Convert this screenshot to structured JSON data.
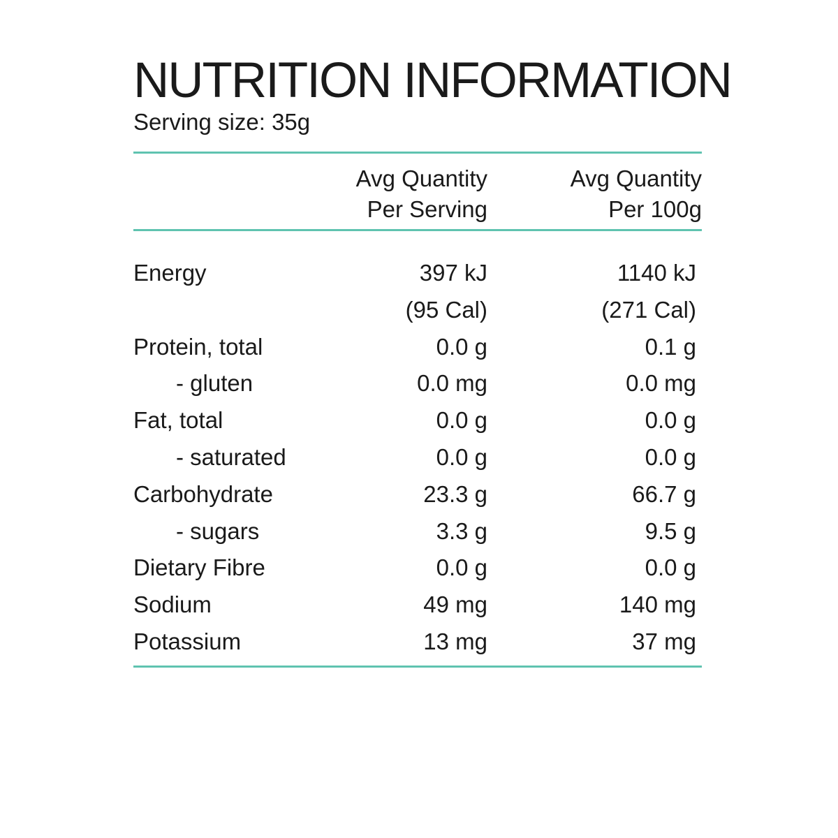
{
  "title": "NUTRITION INFORMATION",
  "serving_size": "Serving size: 35g",
  "columns": {
    "per_serving": [
      "Avg Quantity",
      "Per Serving"
    ],
    "per_100g": [
      "Avg Quantity",
      "Per 100g"
    ]
  },
  "rows": [
    {
      "label": "Energy",
      "per_serving": "397 kJ",
      "per_100g": "1140 kJ"
    },
    {
      "label": "",
      "per_serving": "(95 Cal)",
      "per_100g": "(271 Cal)"
    },
    {
      "label": "Protein, total",
      "per_serving": "0.0 g",
      "per_100g": "0.1 g"
    },
    {
      "label": "- gluten",
      "per_serving": "0.0 mg",
      "per_100g": "0.0 mg"
    },
    {
      "label": "Fat, total",
      "per_serving": "0.0 g",
      "per_100g": "0.0 g"
    },
    {
      "label": "- saturated",
      "per_serving": "0.0 g",
      "per_100g": "0.0 g"
    },
    {
      "label": "Carbohydrate",
      "per_serving": "23.3 g",
      "per_100g": "66.7 g"
    },
    {
      "label": "- sugars",
      "per_serving": "3.3 g",
      "per_100g": "9.5 g"
    },
    {
      "label": "Dietary Fibre",
      "per_serving": "0.0 g",
      "per_100g": "0.0 g"
    },
    {
      "label": "Sodium",
      "per_serving": "49 mg",
      "per_100g": "140 mg"
    },
    {
      "label": "Potassium",
      "per_serving": "13 mg",
      "per_100g": "37 mg"
    }
  ],
  "colors": {
    "rule": "#5fc3b0",
    "text": "#1a1a1a"
  }
}
